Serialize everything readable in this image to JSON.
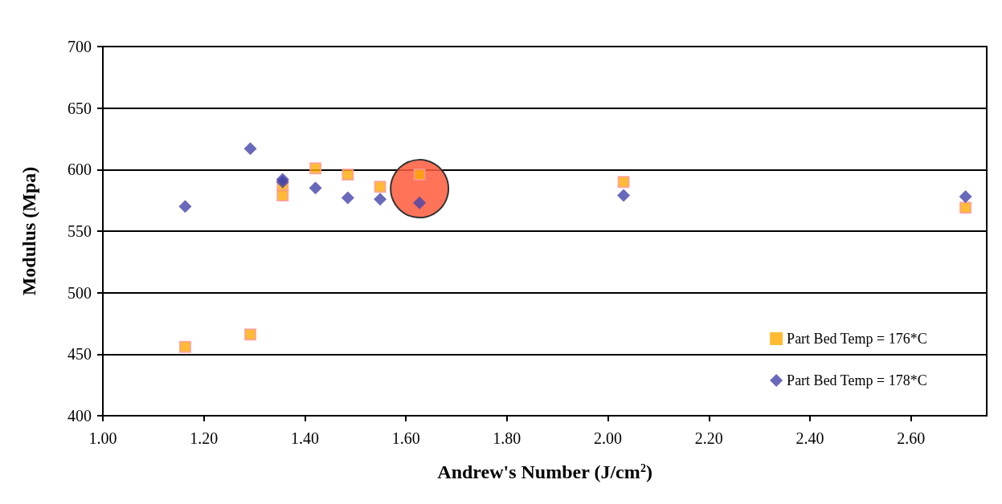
{
  "chart_data": {
    "type": "scatter",
    "xlabel": "Andrew's Number (J/cm$^{2}$)",
    "ylabel": "Modulus (Mpa)",
    "x": [
      1.163,
      1.292,
      1.356,
      1.356,
      1.421,
      1.485,
      1.549,
      1.627,
      2.031,
      2.708
    ],
    "series": [
      {
        "name": "Part Bed Temp = 176*C",
        "color": "#ffaa00",
        "marker": "square",
        "values": [
          456,
          466,
          587,
          579,
          601,
          596,
          586,
          596,
          590,
          569
        ]
      },
      {
        "name": "Part Bed Temp = 178*C",
        "color": "#4444aa",
        "marker": "diamond",
        "values": [
          570,
          617,
          592,
          590,
          585,
          577,
          576,
          573,
          579,
          578
        ]
      }
    ],
    "xlim": [
      1.0,
      2.75
    ],
    "xticks": [
      {
        "value": 1.0,
        "label": "1.00"
      },
      {
        "value": 1.2,
        "label": "1.20"
      },
      {
        "value": 1.4,
        "label": "1.40"
      },
      {
        "value": 1.6,
        "label": "1.60"
      },
      {
        "value": 1.8,
        "label": "1.80"
      },
      {
        "value": 2.0,
        "label": "2.00"
      },
      {
        "value": 2.2,
        "label": "2.20"
      },
      {
        "value": 2.4,
        "label": "2.40"
      },
      {
        "value": 2.6,
        "label": "2.60"
      }
    ],
    "ylim": [
      400,
      700
    ],
    "yticks": [
      400,
      450,
      500,
      550,
      600,
      650,
      700
    ],
    "grid": "y",
    "legend": "bottom right"
  }
}
